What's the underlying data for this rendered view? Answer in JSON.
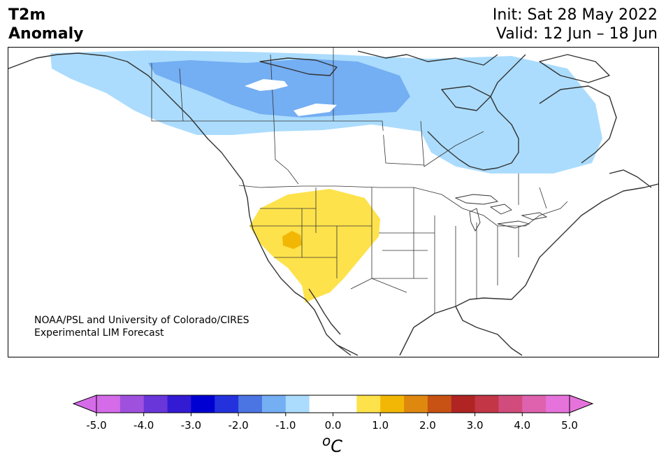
{
  "title": {
    "line1": "T2m",
    "line2": "Anomaly"
  },
  "subtitle": {
    "init": "Init: Sat 28 May 2022",
    "valid": "Valid: 12 Jun – 18 Jun"
  },
  "credit": {
    "line1": "NOAA/PSL and University of Colorado/CIRES",
    "line2": "Experimental LIM Forecast"
  },
  "colorbar": {
    "unit": "oC",
    "unit_base": "C",
    "unit_sup": "o",
    "min": -5.0,
    "max": 5.0,
    "step": 0.5,
    "ticks": [
      "-5.0",
      "-4.0",
      "-3.0",
      "-2.0",
      "-1.0",
      "0.0",
      "1.0",
      "2.0",
      "3.0",
      "4.0",
      "5.0"
    ],
    "colors": [
      "#d56be8",
      "#9f50dd",
      "#6936da",
      "#331ad3",
      "#0000d2",
      "#2332dc",
      "#4b75e3",
      "#74aef3",
      "#abdcfd",
      "#ffffff",
      "#ffffff",
      "#fee24b",
      "#f2b705",
      "#df8810",
      "#c75214",
      "#b02424",
      "#c23646",
      "#d14c7c",
      "#de62ae",
      "#e673dc"
    ],
    "under_color": "#d56be8",
    "over_color": "#e673dc"
  },
  "map": {
    "cool_anomaly_light": "#abdcfd",
    "cool_anomaly_medium": "#74aef3",
    "warm_anomaly_light": "#fee24b",
    "warm_anomaly_medium": "#f2b705"
  }
}
